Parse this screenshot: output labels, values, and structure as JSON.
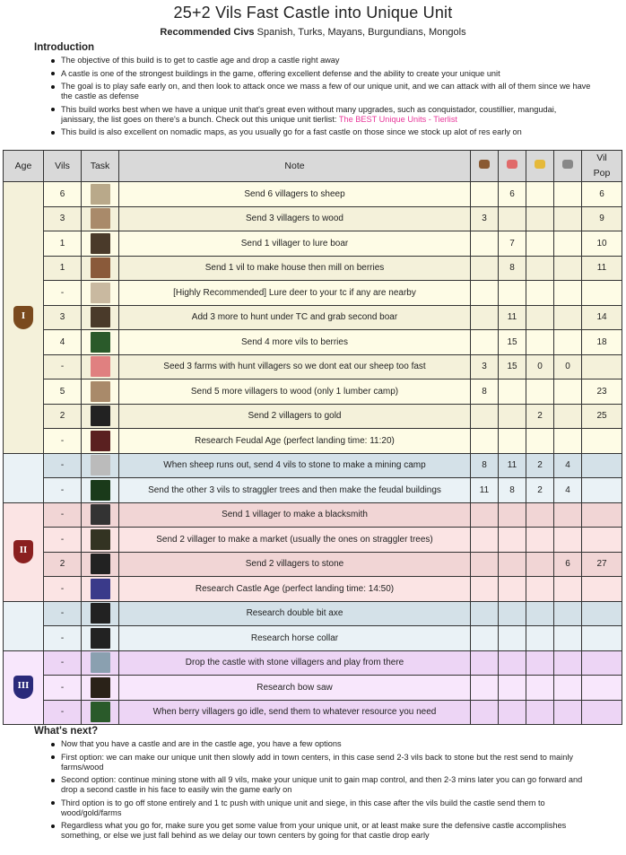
{
  "title": "25+2 Vils Fast Castle into Unique Unit",
  "civs": {
    "label": "Recommended Civs",
    "value": "Spanish, Turks, Mayans, Burgundians, Mongols"
  },
  "intro": {
    "heading": "Introduction",
    "items": [
      "The objective of this build is to get to castle age and drop a castle right away",
      "A castle is one of the strongest buildings in the game, offering excellent defense and the ability to create your unique unit",
      "The goal is to play safe early on, and then look to attack once we mass a few of our unique unit, and we can attack with all of them since we have the castle as defense",
      "This build works best when we have a unique unit that's great even without many upgrades, such as conquistador, coustillier, mangudai, janissary, the list goes on there's a bunch. Check out this unique unit tierlist: ",
      "This build is also excellent on nomadic maps, as you usually go for a fast castle on those since we stock up alot of res early on"
    ],
    "link": "The BEST Unique Units - Tierlist"
  },
  "table": {
    "headers": {
      "age": "Age",
      "vils": "Vils",
      "task": "Task",
      "note": "Note",
      "pop": "Vil Pop"
    },
    "resource_icons": [
      {
        "name": "wood-icon",
        "color": "#8a5a33"
      },
      {
        "name": "food-icon",
        "color": "#e06a6a"
      },
      {
        "name": "gold-icon",
        "color": "#e5b93a"
      },
      {
        "name": "stone-icon",
        "color": "#888888"
      }
    ],
    "groups": [
      {
        "age": "dark-age",
        "icon": "I",
        "icon_color": "#7a4a1e",
        "colors": [
          "#fefce6",
          "#f4f1da"
        ],
        "rows": [
          {
            "vils": "6",
            "icon": "sheep-icon",
            "ic": "#b9a98a",
            "note": "Send 6 villagers to sheep",
            "res": [
              "",
              "6",
              "",
              ""
            ],
            "pop": "6"
          },
          {
            "vils": "3",
            "icon": "wood-axe-icon",
            "ic": "#a98a6a",
            "note": "Send 3 villagers to wood",
            "res": [
              "3",
              "",
              "",
              ""
            ],
            "pop": "9"
          },
          {
            "vils": "1",
            "icon": "boar-icon",
            "ic": "#4a3a2a",
            "note": "Send 1 villager to lure boar",
            "res": [
              "",
              "7",
              "",
              ""
            ],
            "pop": "10"
          },
          {
            "vils": "1",
            "icon": "house-icon",
            "ic": "#8a5a3a",
            "note": "Send 1 vil to make house then mill on berries",
            "res": [
              "",
              "8",
              "",
              ""
            ],
            "pop": "11"
          },
          {
            "vils": "-",
            "icon": "deer-icon",
            "ic": "#c9b9a0",
            "note": "[Highly Recommended] Lure deer to your tc if any are nearby",
            "res": [
              "",
              "",
              "",
              ""
            ],
            "pop": ""
          },
          {
            "vils": "3",
            "icon": "boar-icon",
            "ic": "#4a3a2a",
            "note": "Add 3 more to hunt under TC and grab second boar",
            "res": [
              "",
              "11",
              "",
              ""
            ],
            "pop": "14"
          },
          {
            "vils": "4",
            "icon": "berries-icon",
            "ic": "#2a5a2a",
            "note": "Send 4 more vils to berries",
            "res": [
              "",
              "15",
              "",
              ""
            ],
            "pop": "18"
          },
          {
            "vils": "-",
            "icon": "meat-icon",
            "ic": "#e08080",
            "note": "Seed 3 farms with hunt villagers so we dont eat our sheep too fast",
            "res": [
              "3",
              "15",
              "0",
              "0"
            ],
            "pop": ""
          },
          {
            "vils": "5",
            "icon": "wood-axe-icon",
            "ic": "#a98a6a",
            "note": "Send 5 more villagers to wood (only 1 lumber camp)",
            "res": [
              "8",
              "",
              "",
              ""
            ],
            "pop": "23"
          },
          {
            "vils": "2",
            "icon": "gold-pick-icon",
            "ic": "#222222",
            "note": "Send 2 villagers to gold",
            "res": [
              "",
              "",
              "2",
              ""
            ],
            "pop": "25"
          },
          {
            "vils": "-",
            "icon": "feudal-age-icon",
            "ic": "#5a2020",
            "note": "Research Feudal Age (perfect landing time: 11:20)",
            "res": [
              "",
              "",
              "",
              ""
            ],
            "pop": ""
          }
        ]
      },
      {
        "age": "transition",
        "icon": "",
        "colors": [
          "#d4e1e8",
          "#eaf2f6"
        ],
        "rows": [
          {
            "vils": "-",
            "icon": "stone-icon",
            "ic": "#bbbbbb",
            "note": "When sheep runs out, send 4 vils to stone to make a mining camp",
            "res": [
              "8",
              "11",
              "2",
              "4"
            ],
            "pop": ""
          },
          {
            "vils": "-",
            "icon": "tree-icon",
            "ic": "#1a3a1a",
            "note": "Send the other 3 vils to straggler trees and then make the feudal buildings",
            "res": [
              "11",
              "8",
              "2",
              "4"
            ],
            "pop": ""
          }
        ]
      },
      {
        "age": "feudal-age",
        "icon": "II",
        "icon_color": "#8a1f1f",
        "colors": [
          "#f1d5d5",
          "#fbe4e4"
        ],
        "rows": [
          {
            "vils": "-",
            "icon": "blacksmith-icon",
            "ic": "#333333",
            "note": "Send 1 villager to make a blacksmith",
            "res": [
              "",
              "",
              "",
              ""
            ],
            "pop": ""
          },
          {
            "vils": "-",
            "icon": "market-icon",
            "ic": "#333322",
            "note": "Send 2 villager to make a market (usually the ones on straggler trees)",
            "res": [
              "",
              "",
              "",
              ""
            ],
            "pop": ""
          },
          {
            "vils": "2",
            "icon": "stone-pick-icon",
            "ic": "#222222",
            "note": "Send 2 villagers to stone",
            "res": [
              "",
              "",
              "",
              "6"
            ],
            "pop": "27"
          },
          {
            "vils": "-",
            "icon": "castle-age-icon",
            "ic": "#3a3a8a",
            "note": "Research Castle Age (perfect landing time: 14:50)",
            "res": [
              "",
              "",
              "",
              ""
            ],
            "pop": ""
          }
        ]
      },
      {
        "age": "transition-2",
        "icon": "",
        "colors": [
          "#d4e1e8",
          "#eaf2f6"
        ],
        "rows": [
          {
            "vils": "-",
            "icon": "double-bit-axe-icon",
            "ic": "#222222",
            "note": "Research double bit axe",
            "res": [
              "",
              "",
              "",
              ""
            ],
            "pop": ""
          },
          {
            "vils": "-",
            "icon": "horse-collar-icon",
            "ic": "#222222",
            "note": "Research horse collar",
            "res": [
              "",
              "",
              "",
              ""
            ],
            "pop": ""
          }
        ]
      },
      {
        "age": "castle-age",
        "icon": "III",
        "icon_color": "#2a2a7a",
        "colors": [
          "#edd5f5",
          "#f8e7fc"
        ],
        "rows": [
          {
            "vils": "-",
            "icon": "castle-icon",
            "ic": "#8aa0b0",
            "note": "Drop the castle with stone villagers and play from there",
            "res": [
              "",
              "",
              "",
              ""
            ],
            "pop": ""
          },
          {
            "vils": "-",
            "icon": "bow-saw-icon",
            "ic": "#2a2218",
            "note": "Research bow saw",
            "res": [
              "",
              "",
              "",
              ""
            ],
            "pop": ""
          },
          {
            "vils": "-",
            "icon": "berries-icon",
            "ic": "#2a5a2a",
            "note": "When berry villagers go idle, send them to whatever resource you need",
            "res": [
              "",
              "",
              "",
              ""
            ],
            "pop": ""
          }
        ]
      }
    ]
  },
  "next": {
    "heading": "What's next?",
    "items": [
      "Now that you have a castle and are in the castle age, you have a few options",
      "First option: we can make our unique unit then slowly add in town centers, in this case send 2-3 vils back to stone but the rest send to mainly farms/wood",
      "Second option: continue mining stone with all 9 vils, make your unique unit to gain map control, and then 2-3 mins later you can go forward and drop a second castle in his face to easily win the game early on",
      "Third option is to go off stone entirely and 1 tc push with unique unit and siege, in this case after the vils build the castle send them to wood/gold/farms",
      "Regardless what you go for, make sure you get some value from your unique unit, or at least make sure the defensive castle accomplishes something, or else we just fall behind as we delay our town centers by going for that castle drop early"
    ]
  }
}
